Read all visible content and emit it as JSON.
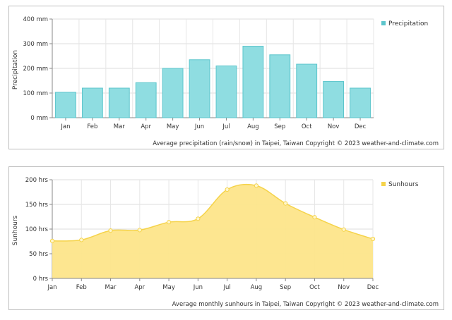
{
  "chart_data": [
    {
      "type": "bar",
      "categories": [
        "Jan",
        "Feb",
        "Mar",
        "Apr",
        "May",
        "Jun",
        "Jul",
        "Aug",
        "Sep",
        "Oct",
        "Nov",
        "Dec"
      ],
      "series": [
        {
          "name": "Precipitation",
          "values": [
            103,
            120,
            120,
            142,
            200,
            235,
            210,
            290,
            255,
            217,
            147,
            120
          ]
        }
      ],
      "ylabel": "Precipitation",
      "yticks": [
        "0 mm",
        "100 mm",
        "200 mm",
        "300 mm",
        "400 mm"
      ],
      "ylim": [
        0,
        400
      ],
      "grid": true,
      "legend": "top-right",
      "caption": "Average precipitation (rain/snow) in Taipei, Taiwan   Copyright © 2023  weather-and-climate.com",
      "colors": {
        "fill": "#8fdde1",
        "stroke": "#5cc5cc"
      }
    },
    {
      "type": "area",
      "categories": [
        "Jan",
        "Feb",
        "Mar",
        "Apr",
        "May",
        "Jun",
        "Jul",
        "Aug",
        "Sep",
        "Oct",
        "Nov",
        "Dec"
      ],
      "series": [
        {
          "name": "Sunhours",
          "values": [
            76,
            78,
            97,
            98,
            114,
            121,
            180,
            188,
            152,
            124,
            99,
            80
          ]
        }
      ],
      "ylabel": "Sunhours",
      "yticks": [
        "0 hrs",
        "50 hrs",
        "100 hrs",
        "150 hrs",
        "200 hrs"
      ],
      "ylim": [
        0,
        200
      ],
      "grid": true,
      "legend": "top-right",
      "caption": "Average monthly sunhours in Taipei, Taiwan   Copyright © 2023  weather-and-climate.com",
      "colors": {
        "fill": "#fde58a",
        "stroke": "#f5d34a",
        "point": "#fff6cc"
      }
    }
  ]
}
